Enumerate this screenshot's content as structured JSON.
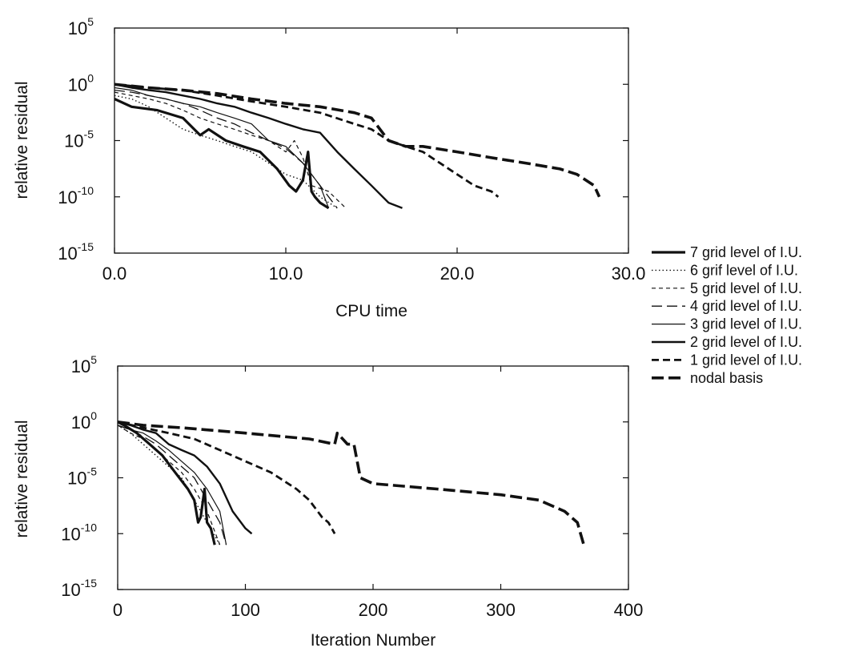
{
  "chart_data": [
    {
      "type": "line",
      "xlabel": "CPU time",
      "ylabel": "relative residual",
      "xlim": [
        0,
        30
      ],
      "ylim": [
        1e-15,
        100000
      ],
      "yscale": "log",
      "x_ticks": [
        "0.0",
        "10.0",
        "20.0",
        "30.0"
      ],
      "y_ticks": [
        {
          "base": "10",
          "exp": "5"
        },
        {
          "base": "10",
          "exp": "0"
        },
        {
          "base": "10",
          "exp": "-5"
        },
        {
          "base": "10",
          "exp": "-10"
        },
        {
          "base": "10",
          "exp": "-15"
        }
      ],
      "series": [
        {
          "name": "7 grid level of I.U.",
          "style": "solid-thick",
          "x": [
            0.0,
            1.0,
            2.5,
            4.0,
            5.0,
            5.5,
            6.5,
            7.5,
            8.5,
            9.5,
            10.2,
            10.6,
            11.0,
            11.3,
            11.5,
            11.7,
            12.0,
            12.5
          ],
          "y": [
            0.05,
            0.01,
            0.005,
            0.001,
            3e-05,
            0.0001,
            1e-05,
            3e-06,
            1e-06,
            3e-08,
            1e-09,
            3e-10,
            3e-09,
            1e-06,
            3e-10,
            1e-10,
            3e-11,
            1e-11
          ]
        },
        {
          "name": "6 grif level of I.U.",
          "style": "dotted",
          "x": [
            0.0,
            1.0,
            2.0,
            3.0,
            4.0,
            5.0,
            6.0,
            7.0,
            8.0,
            9.0,
            10.0,
            11.0,
            12.0,
            13.0
          ],
          "y": [
            0.1,
            0.05,
            0.01,
            0.001,
            0.0001,
            3e-05,
            1e-05,
            3e-06,
            1e-06,
            1e-07,
            1e-08,
            3e-09,
            1e-10,
            1e-11
          ]
        },
        {
          "name": "5 grid level of I.U.",
          "style": "short-dash",
          "x": [
            0.0,
            1.0,
            2.0,
            3.0,
            4.0,
            5.0,
            6.0,
            7.0,
            8.0,
            9.0,
            10.0,
            10.5,
            11.0,
            11.5,
            12.5,
            13.5
          ],
          "y": [
            0.2,
            0.1,
            0.05,
            0.02,
            0.005,
            0.001,
            0.0003,
            0.0001,
            3e-05,
            1e-05,
            1e-06,
            1e-05,
            3e-07,
            1e-09,
            3e-10,
            1e-11
          ]
        },
        {
          "name": "4 grid level of I.U.",
          "style": "long-dash",
          "x": [
            0.0,
            1.0,
            2.0,
            3.0,
            4.0,
            5.0,
            6.0,
            7.0,
            8.0,
            9.0,
            10.0,
            11.0,
            12.0,
            13.0
          ],
          "y": [
            0.3,
            0.2,
            0.1,
            0.05,
            0.02,
            0.005,
            0.001,
            0.0003,
            5e-05,
            1e-05,
            2e-06,
            1e-07,
            1e-09,
            1e-11
          ]
        },
        {
          "name": "3 grid level of I.U.",
          "style": "solid-thin",
          "x": [
            0.0,
            1.0,
            2.0,
            3.0,
            4.0,
            5.0,
            6.0,
            7.0,
            8.0,
            9.0,
            10.0,
            11.0,
            12.0,
            12.5
          ],
          "y": [
            0.5,
            0.3,
            0.1,
            0.05,
            0.02,
            0.01,
            0.003,
            0.001,
            0.0003,
            1e-05,
            3e-06,
            1e-07,
            1e-09,
            1e-11
          ]
        },
        {
          "name": "2 grid level of I.U.",
          "style": "solid-medium",
          "x": [
            0.0,
            1.0,
            2.0,
            3.0,
            4.0,
            5.0,
            6.0,
            7.0,
            8.0,
            9.0,
            10.0,
            11.0,
            12.0,
            13.0,
            14.0,
            15.0,
            16.0,
            16.8
          ],
          "y": [
            1.0,
            0.5,
            0.3,
            0.2,
            0.1,
            0.05,
            0.02,
            0.01,
            0.003,
            0.001,
            0.0003,
            0.0001,
            5e-05,
            1e-06,
            3e-08,
            1e-09,
            3e-11,
            1e-11
          ]
        },
        {
          "name": "1 grid level of I.U.",
          "style": "dash-medium",
          "x": [
            0.0,
            2.0,
            4.0,
            6.0,
            8.0,
            10.0,
            12.0,
            14.0,
            15.0,
            16.0,
            17.0,
            18.0,
            19.0,
            20.0,
            21.0,
            22.0,
            22.4
          ],
          "y": [
            1.0,
            0.5,
            0.3,
            0.1,
            0.03,
            0.01,
            0.003,
            0.0003,
            0.0001,
            1e-05,
            3e-06,
            1e-06,
            1e-07,
            1e-08,
            1e-09,
            3e-10,
            1e-10
          ]
        },
        {
          "name": "nodal basis",
          "style": "dash-thick",
          "x": [
            0.0,
            2.0,
            4.0,
            6.0,
            8.0,
            10.0,
            12.0,
            14.0,
            15.0,
            16.0,
            17.0,
            18.0,
            20.0,
            22.0,
            24.0,
            26.0,
            27.0,
            28.0,
            28.3
          ],
          "y": [
            1.0,
            0.5,
            0.3,
            0.15,
            0.05,
            0.02,
            0.01,
            0.003,
            0.001,
            1e-05,
            3e-06,
            3e-06,
            1e-06,
            3e-07,
            1e-07,
            3e-08,
            1e-08,
            1e-09,
            1e-10
          ]
        }
      ]
    },
    {
      "type": "line",
      "xlabel": "Iteration Number",
      "ylabel": "relative residual",
      "xlim": [
        0,
        400
      ],
      "ylim": [
        1e-15,
        100000
      ],
      "yscale": "log",
      "x_ticks": [
        "0",
        "100",
        "200",
        "300",
        "400"
      ],
      "y_ticks": [
        {
          "base": "10",
          "exp": "5"
        },
        {
          "base": "10",
          "exp": "0"
        },
        {
          "base": "10",
          "exp": "-5"
        },
        {
          "base": "10",
          "exp": "-10"
        },
        {
          "base": "10",
          "exp": "-15"
        }
      ],
      "series": [
        {
          "name": "7 grid level of I.U.",
          "style": "solid-thick",
          "x": [
            0,
            5,
            15,
            25,
            35,
            45,
            55,
            60,
            63,
            65,
            68,
            70,
            73,
            76
          ],
          "y": [
            1.0,
            0.5,
            0.1,
            0.01,
            0.001,
            3e-05,
            1e-06,
            1e-07,
            1e-09,
            3e-09,
            1e-06,
            1e-09,
            3e-10,
            1e-11
          ]
        },
        {
          "name": "6 grif level of I.U.",
          "style": "dotted",
          "x": [
            0,
            10,
            20,
            30,
            40,
            50,
            60,
            70,
            80
          ],
          "y": [
            0.5,
            0.1,
            0.01,
            0.001,
            0.0001,
            1e-05,
            1e-07,
            1e-09,
            1e-11
          ]
        },
        {
          "name": "5 grid level of I.U.",
          "style": "short-dash",
          "x": [
            0,
            10,
            20,
            30,
            40,
            50,
            60,
            70,
            80
          ],
          "y": [
            0.5,
            0.1,
            0.03,
            0.003,
            0.0003,
            3e-05,
            1e-06,
            1e-08,
            1e-11
          ]
        },
        {
          "name": "4 grid level of I.U.",
          "style": "long-dash",
          "x": [
            0,
            10,
            20,
            30,
            40,
            50,
            60,
            70,
            80,
            85
          ],
          "y": [
            0.5,
            0.2,
            0.05,
            0.01,
            0.001,
            0.0001,
            1e-05,
            1e-07,
            1e-09,
            1e-11
          ]
        },
        {
          "name": "3 grid level of I.U.",
          "style": "solid-thin",
          "x": [
            0,
            10,
            20,
            30,
            40,
            50,
            60,
            70,
            80,
            85
          ],
          "y": [
            0.5,
            0.2,
            0.1,
            0.02,
            0.003,
            0.0003,
            3e-05,
            1e-06,
            1e-08,
            1e-11
          ]
        },
        {
          "name": "2 grid level of I.U.",
          "style": "solid-medium",
          "x": [
            0,
            10,
            20,
            30,
            40,
            50,
            60,
            70,
            80,
            90,
            100,
            105
          ],
          "y": [
            1.0,
            0.5,
            0.2,
            0.1,
            0.01,
            0.003,
            0.001,
            0.0001,
            3e-06,
            1e-08,
            3e-10,
            1e-10
          ]
        },
        {
          "name": "1 grid level of I.U.",
          "style": "dash-medium",
          "x": [
            0,
            20,
            40,
            60,
            80,
            100,
            120,
            140,
            150,
            160,
            165,
            170
          ],
          "y": [
            1.0,
            0.3,
            0.1,
            0.03,
            0.003,
            0.0003,
            3e-05,
            1e-06,
            1e-07,
            3e-09,
            1e-09,
            1e-10
          ]
        },
        {
          "name": "nodal basis",
          "style": "dash-thick",
          "x": [
            0,
            20,
            50,
            100,
            150,
            170,
            172,
            180,
            185,
            190,
            200,
            250,
            300,
            330,
            350,
            360,
            365
          ],
          "y": [
            1.0,
            0.5,
            0.3,
            0.1,
            0.03,
            0.01,
            0.1,
            0.01,
            0.01,
            1e-05,
            3e-06,
            1e-06,
            3e-07,
            1e-07,
            1e-08,
            1e-09,
            1e-11
          ]
        }
      ]
    }
  ],
  "legend": {
    "placement": "right",
    "items": [
      {
        "label": "7 grid level of I.U.",
        "style": "solid-thick"
      },
      {
        "label": "6 grif level of I.U.",
        "style": "dotted"
      },
      {
        "label": "5 grid level of I.U.",
        "style": "short-dash"
      },
      {
        "label": "4 grid level of I.U.",
        "style": "long-dash"
      },
      {
        "label": "3 grid level of I.U.",
        "style": "solid-thin"
      },
      {
        "label": "2 grid level of I.U.",
        "style": "solid-medium"
      },
      {
        "label": "1 grid level of I.U.",
        "style": "dash-medium"
      },
      {
        "label": "nodal basis",
        "style": "dash-thick"
      }
    ]
  },
  "colors": {
    "ink": "#111111",
    "background": "#ffffff"
  }
}
